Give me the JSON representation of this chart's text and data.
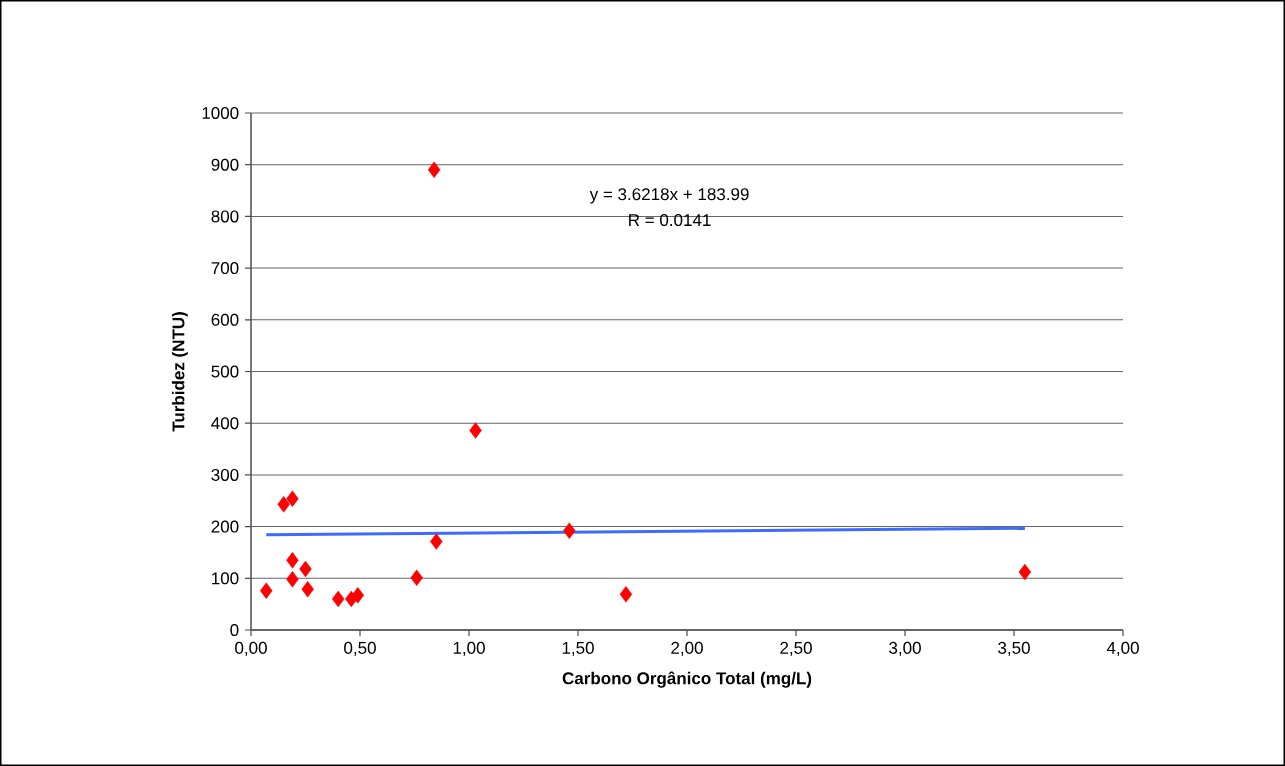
{
  "chart_data": {
    "type": "scatter",
    "xlabel": "Carbono Orgânico Total (mg/L)",
    "ylabel": "Turbidez (NTU)",
    "annotations": [
      "y = 3.6218x + 183.99",
      "R = 0.0141"
    ],
    "xlim": [
      0,
      4
    ],
    "ylim": [
      0,
      1000
    ],
    "xticks": [
      {
        "value": 0,
        "label": "0,00"
      },
      {
        "value": 0.5,
        "label": "0,50"
      },
      {
        "value": 1,
        "label": "1,00"
      },
      {
        "value": 1.5,
        "label": "1,50"
      },
      {
        "value": 2,
        "label": "2,00"
      },
      {
        "value": 2.5,
        "label": "2,50"
      },
      {
        "value": 3,
        "label": "3,00"
      },
      {
        "value": 3.5,
        "label": "3,50"
      },
      {
        "value": 4,
        "label": "4,00"
      }
    ],
    "yticks": [
      0,
      100,
      200,
      300,
      400,
      500,
      600,
      700,
      800,
      900,
      1000
    ],
    "grid": "y",
    "series": [
      {
        "marker": "diamond",
        "color": "#ff0000",
        "x": [
          0.07,
          0.15,
          0.19,
          0.19,
          0.19,
          0.25,
          0.26,
          0.4,
          0.46,
          0.49,
          0.76,
          0.84,
          0.85,
          1.03,
          1.46,
          1.72,
          3.55
        ],
        "values": [
          76,
          243,
          254,
          135,
          98,
          118,
          79,
          60,
          60,
          67,
          101,
          890,
          171,
          386,
          192,
          69,
          112
        ]
      },
      {
        "type": "line",
        "marker": "none",
        "color": "#3d6bff",
        "x": [
          0.07,
          3.55
        ],
        "values": [
          184,
          197
        ]
      }
    ]
  }
}
